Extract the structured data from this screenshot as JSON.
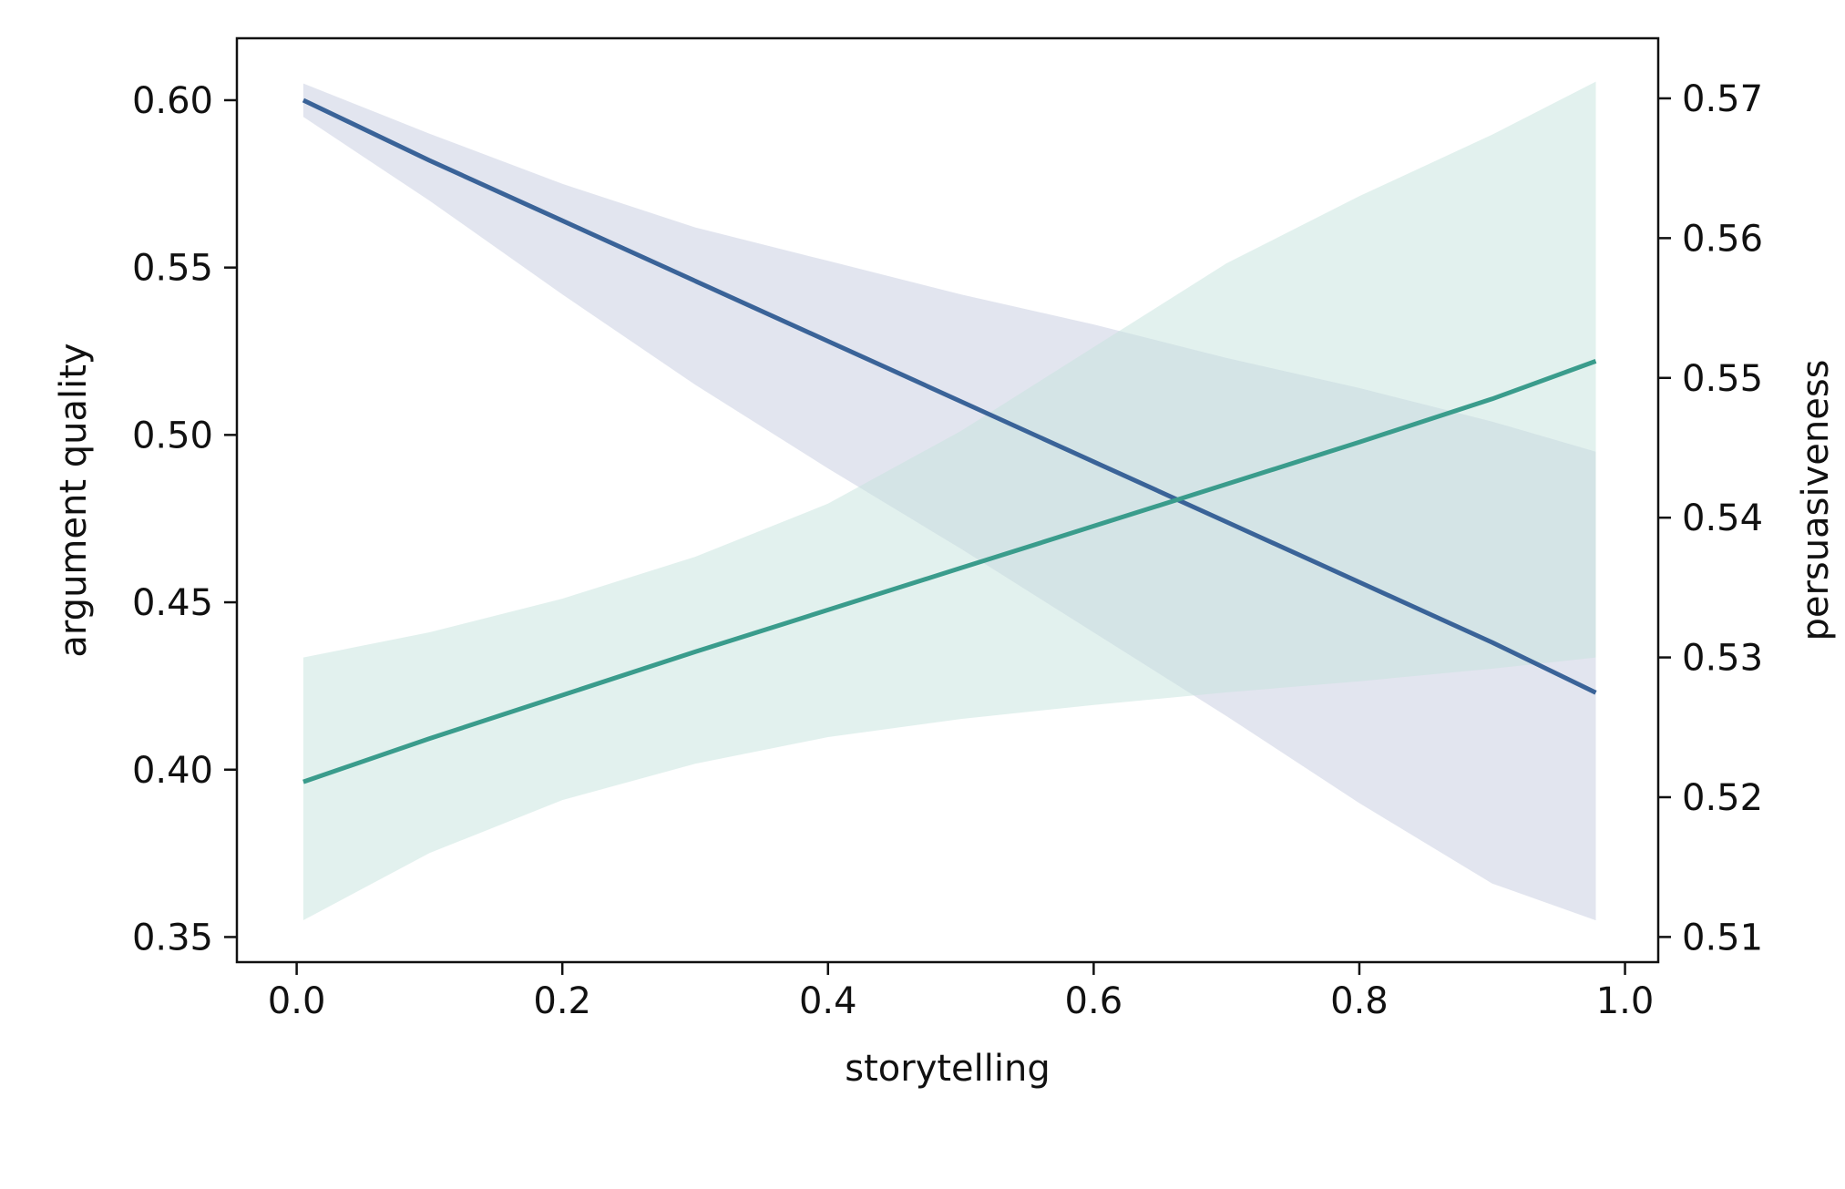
{
  "chart_data": {
    "type": "line",
    "xlabel": "storytelling",
    "ylabel_left": "argument quality",
    "ylabel_right": "persuasiveness",
    "xlim": [
      -0.045,
      1.025
    ],
    "ylim_left": [
      0.3425,
      0.6185
    ],
    "ylim_right": [
      0.5082,
      0.5743
    ],
    "x_ticks": [
      0.0,
      0.2,
      0.4,
      0.6,
      0.8,
      1.0
    ],
    "x_tick_labels": [
      "0.0",
      "0.2",
      "0.4",
      "0.6",
      "0.8",
      "1.0"
    ],
    "y_left_ticks": [
      0.35,
      0.4,
      0.45,
      0.5,
      0.55,
      0.6
    ],
    "y_left_tick_labels": [
      "0.35",
      "0.40",
      "0.45",
      "0.50",
      "0.55",
      "0.60"
    ],
    "y_right_ticks": [
      0.51,
      0.52,
      0.53,
      0.54,
      0.55,
      0.56,
      0.57
    ],
    "y_right_tick_labels": [
      "0.51",
      "0.52",
      "0.53",
      "0.54",
      "0.55",
      "0.56",
      "0.57"
    ],
    "grid": false,
    "legend": "none",
    "series": [
      {
        "axis": "left",
        "color": "#3a6398",
        "band_color": "#c6cce0",
        "x": [
          0.005,
          0.1,
          0.2,
          0.3,
          0.4,
          0.5,
          0.6,
          0.7,
          0.8,
          0.9,
          0.978
        ],
        "y": [
          0.6,
          0.582,
          0.564,
          0.546,
          0.528,
          0.51,
          0.492,
          0.474,
          0.456,
          0.438,
          0.423
        ],
        "y_upper": [
          0.605,
          0.59,
          0.575,
          0.562,
          0.552,
          0.542,
          0.533,
          0.523,
          0.514,
          0.504,
          0.495
        ],
        "y_lower": [
          0.595,
          0.57,
          0.542,
          0.515,
          0.49,
          0.466,
          0.441,
          0.416,
          0.39,
          0.366,
          0.355
        ]
      },
      {
        "axis": "right",
        "color": "#3a9c8c",
        "band_color": "#c5e3dd",
        "x": [
          0.005,
          0.1,
          0.2,
          0.3,
          0.4,
          0.5,
          0.6,
          0.7,
          0.8,
          0.9,
          0.978
        ],
        "y": [
          0.5211,
          0.5242,
          0.5273,
          0.5304,
          0.5334,
          0.5364,
          0.5394,
          0.5424,
          0.5454,
          0.5485,
          0.5512
        ],
        "y_upper": [
          0.53,
          0.5318,
          0.5342,
          0.5372,
          0.541,
          0.5462,
          0.5522,
          0.5582,
          0.563,
          0.5674,
          0.5712
        ],
        "y_lower": [
          0.5112,
          0.516,
          0.5198,
          0.5224,
          0.5243,
          0.5256,
          0.5266,
          0.5275,
          0.5283,
          0.5292,
          0.53
        ]
      }
    ]
  }
}
